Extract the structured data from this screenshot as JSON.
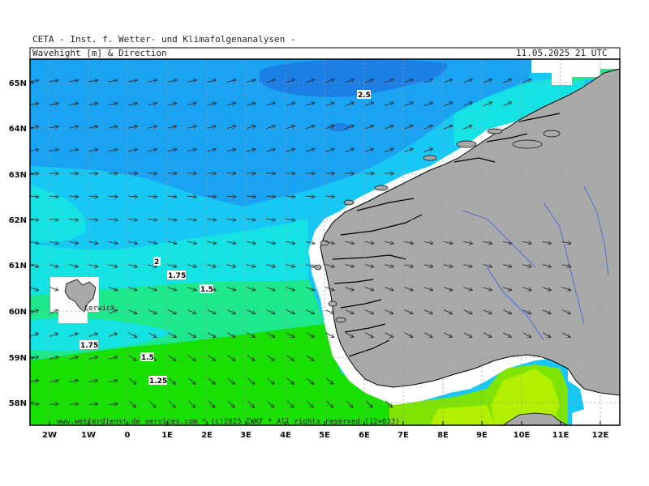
{
  "header": {
    "institute": "CETA - Inst. f. Wetter- und Klimafolgenanalysen -",
    "title": "Wavehight [m] & Direction",
    "datetime": "11.05.2025 21 UTC"
  },
  "footer": "www.wetterdienst.de services.com * (c)2025 IWKF * All rights reserved (12+033)",
  "place_labels": [
    "Lerwick"
  ],
  "contour_labels": [
    "2.5",
    "2",
    "1.75",
    "1.5",
    "1.75",
    "1.5",
    "1.25"
  ],
  "lat_labels": [
    "65N",
    "64N",
    "63N",
    "62N",
    "61N",
    "60N",
    "59N",
    "58N"
  ],
  "lon_labels": [
    "2W",
    "1W",
    "0",
    "1E",
    "2E",
    "3E",
    "4E",
    "5E",
    "6E",
    "7E",
    "8E",
    "9E",
    "10E",
    "11E",
    "12E"
  ],
  "legend_colors": {
    "land": "#a9a9a9",
    "wave_3_0": "#1c7fe6",
    "wave_2_5": "#1aa3f2",
    "wave_2_0": "#17c8f5",
    "wave_1_75": "#15e3e3",
    "wave_1_5": "#1ee88c",
    "wave_1_25": "#18e000",
    "wave_1_0": "#7fe400",
    "wave_0_75": "#b2f000"
  }
}
